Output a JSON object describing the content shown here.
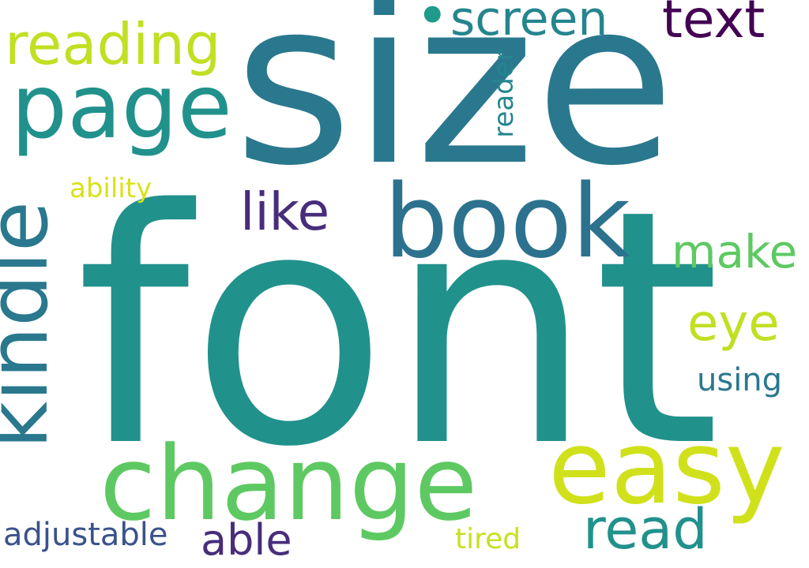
{
  "words": {
    "size": {
      "text": "size",
      "color": "#2a788e"
    },
    "font": {
      "text": "font",
      "color": "#21918c"
    },
    "book": {
      "text": "book",
      "color": "#2c728e"
    },
    "change": {
      "text": "change",
      "color": "#5ec962"
    },
    "easy": {
      "text": "easy",
      "color": "#d0e11c"
    },
    "page": {
      "text": "page",
      "color": "#21918c"
    },
    "kindle": {
      "text": "kindle",
      "color": "#2a788e"
    },
    "reading": {
      "text": "reading",
      "color": "#c2df23"
    },
    "screen": {
      "text": "screen",
      "color": "#25858e"
    },
    "text": {
      "text": "text",
      "color": "#440154"
    },
    "like": {
      "text": "like",
      "color": "#472d7b"
    },
    "make": {
      "text": "make",
      "color": "#5ec962"
    },
    "eye": {
      "text": "eye",
      "color": "#c2df23"
    },
    "using": {
      "text": "using",
      "color": "#2a788e"
    },
    "read": {
      "text": "read",
      "color": "#21918c"
    },
    "able": {
      "text": "able",
      "color": "#472d7b"
    },
    "adjustable": {
      "text": "adjustable",
      "color": "#3b528b"
    },
    "tired": {
      "text": "tired",
      "color": "#c8e020"
    },
    "reader": {
      "text": "reader",
      "color": "#25858e"
    },
    "ability": {
      "text": "ability",
      "color": "#d8e219"
    },
    "bullet": {
      "text": "•",
      "color": "#1e9b8a"
    }
  }
}
